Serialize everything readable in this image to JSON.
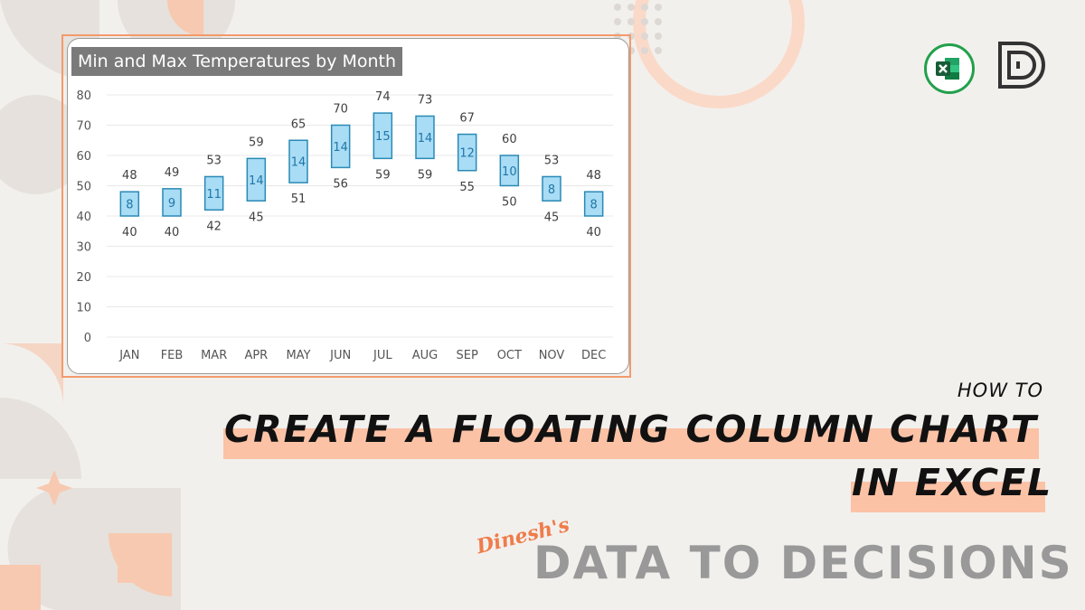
{
  "chart_data": {
    "type": "bar",
    "subtype": "floating-column",
    "title": "Min and Max Temperatures by Month",
    "categories": [
      "JAN",
      "FEB",
      "MAR",
      "APR",
      "MAY",
      "JUN",
      "JUL",
      "AUG",
      "SEP",
      "OCT",
      "NOV",
      "DEC"
    ],
    "series": [
      {
        "values": [
          40,
          40,
          42,
          45,
          51,
          56,
          59,
          59,
          55,
          50,
          45,
          40
        ]
      },
      {
        "values": [
          48,
          49,
          53,
          59,
          65,
          70,
          74,
          73,
          67,
          60,
          53,
          48
        ]
      },
      {
        "values": [
          8,
          9,
          11,
          14,
          14,
          14,
          15,
          14,
          12,
          10,
          8,
          8
        ]
      }
    ],
    "ylim": [
      0,
      80
    ],
    "y_ticks": [
      0,
      10,
      20,
      30,
      40,
      50,
      60,
      70,
      80
    ],
    "grid": true,
    "bar_fill": "#a9dcf5",
    "bar_stroke": "#2a8ab5",
    "bar_label_color": "#1f77a8"
  },
  "text": {
    "how_to": "HOW TO",
    "headline_line1": "CREATE A FLOATING COLUMN CHART",
    "headline_line2": "IN EXCEL",
    "signature": "Dinesh's",
    "brand": "DATA TO DECISIONS"
  },
  "colors": {
    "accent": "#f39a6c",
    "highlight": "#fbc2a6",
    "excel_green": "#22a04b"
  },
  "icons": {
    "excel": "excel-logo-icon",
    "brand": "d-letter-logo-icon"
  }
}
